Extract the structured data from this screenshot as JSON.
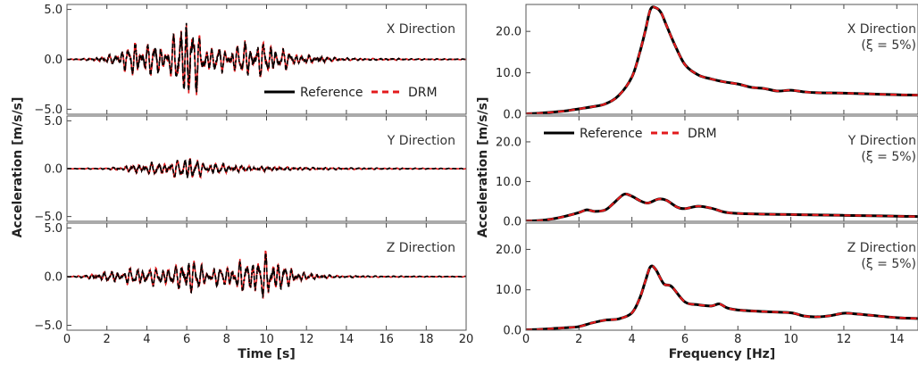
{
  "chart_data": [
    {
      "type": "line",
      "panel": "left",
      "xlabel": "Time [s]",
      "ylabel": "Acceleration [m/s/s]",
      "xlim": [
        0,
        20
      ],
      "xticks": [
        "0",
        "2",
        "4",
        "6",
        "8",
        "10",
        "12",
        "14",
        "16",
        "18",
        "20"
      ],
      "legend": {
        "entries": [
          "Reference",
          "DRM"
        ],
        "placement": "inside top subplot, bottom-right"
      },
      "series_style": [
        {
          "name": "Reference",
          "color": "#000000",
          "dash": "solid"
        },
        {
          "name": "DRM",
          "color": "#e31a1c",
          "dash": "dashed"
        }
      ],
      "subplots": [
        {
          "label": "X Direction",
          "ylim": [
            -5.5,
            5.5
          ],
          "yticks": [
            "5.0",
            "0.0",
            "−5.0"
          ],
          "envelope": [
            [
              0,
              0.02
            ],
            [
              1,
              0.08
            ],
            [
              2,
              0.25
            ],
            [
              3,
              1.2
            ],
            [
              3.5,
              1.6
            ],
            [
              4,
              1.5
            ],
            [
              4.5,
              1.6
            ],
            [
              5,
              1.0
            ],
            [
              5.5,
              2.6
            ],
            [
              6,
              5.0
            ],
            [
              6.3,
              3.8
            ],
            [
              6.6,
              2.2
            ],
            [
              7,
              1.3
            ],
            [
              7.5,
              1.2
            ],
            [
              8,
              1.0
            ],
            [
              8.5,
              1.2
            ],
            [
              9,
              1.8
            ],
            [
              9.5,
              1.6
            ],
            [
              10,
              1.5
            ],
            [
              10.5,
              1.2
            ],
            [
              11,
              0.9
            ],
            [
              11.5,
              0.5
            ],
            [
              12,
              0.3
            ],
            [
              12.5,
              0.35
            ],
            [
              13,
              0.2
            ],
            [
              14,
              0.12
            ],
            [
              15,
              0.08
            ],
            [
              16,
              0.08
            ],
            [
              17,
              0.06
            ],
            [
              18,
              0.05
            ],
            [
              20,
              0.03
            ]
          ]
        },
        {
          "label": "Y Direction",
          "ylim": [
            -5.5,
            5.5
          ],
          "yticks": [
            "5.0",
            "0.0",
            "−5.0"
          ],
          "envelope": [
            [
              0,
              0.02
            ],
            [
              2,
              0.06
            ],
            [
              3,
              0.25
            ],
            [
              4,
              0.55
            ],
            [
              5,
              0.6
            ],
            [
              5.5,
              0.8
            ],
            [
              6,
              1.4
            ],
            [
              6.5,
              0.9
            ],
            [
              7,
              0.5
            ],
            [
              7.5,
              0.55
            ],
            [
              8,
              0.35
            ],
            [
              9,
              0.25
            ],
            [
              10,
              0.2
            ],
            [
              11,
              0.15
            ],
            [
              12,
              0.12
            ],
            [
              14,
              0.08
            ],
            [
              16,
              0.06
            ],
            [
              18,
              0.04
            ],
            [
              20,
              0.03
            ]
          ]
        },
        {
          "label": "Z Direction",
          "ylim": [
            -5.5,
            5.5
          ],
          "yticks": [
            "5.0",
            "0.0",
            "−5.0"
          ],
          "envelope": [
            [
              0,
              0.02
            ],
            [
              1,
              0.15
            ],
            [
              2,
              0.45
            ],
            [
              3,
              0.7
            ],
            [
              4,
              0.9
            ],
            [
              5,
              0.85
            ],
            [
              5.5,
              1.0
            ],
            [
              6,
              2.2
            ],
            [
              6.5,
              1.3
            ],
            [
              7,
              0.7
            ],
            [
              7.5,
              0.9
            ],
            [
              8,
              1.0
            ],
            [
              8.5,
              1.3
            ],
            [
              9,
              1.6
            ],
            [
              9.5,
              1.9
            ],
            [
              10,
              2.1
            ],
            [
              10.5,
              1.6
            ],
            [
              11,
              1.0
            ],
            [
              11.5,
              0.6
            ],
            [
              12,
              0.3
            ],
            [
              13,
              0.15
            ],
            [
              14,
              0.08
            ],
            [
              16,
              0.06
            ],
            [
              18,
              0.04
            ],
            [
              20,
              0.03
            ]
          ]
        }
      ]
    },
    {
      "type": "line",
      "panel": "right",
      "xlabel": "Frequency [Hz]",
      "ylabel": "Acceleration [m/s/s]",
      "xlim": [
        0,
        14.8
      ],
      "xticks": [
        "0",
        "2",
        "4",
        "6",
        "8",
        "10",
        "12",
        "14"
      ],
      "legend": {
        "entries": [
          "Reference",
          "DRM"
        ],
        "placement": "inside middle subplot, top-left"
      },
      "series_style": [
        {
          "name": "Reference",
          "color": "#000000",
          "dash": "solid"
        },
        {
          "name": "DRM",
          "color": "#e31a1c",
          "dash": "dashed"
        }
      ],
      "subplots": [
        {
          "label": "X Direction",
          "label2": "(ξ = 5%)",
          "ylim": [
            0,
            26.5
          ],
          "yticks": [
            "0.0",
            "10.0",
            "20.0"
          ],
          "points": [
            [
              0,
              0.1
            ],
            [
              0.5,
              0.25
            ],
            [
              1,
              0.5
            ],
            [
              1.5,
              0.8
            ],
            [
              2,
              1.3
            ],
            [
              2.5,
              1.8
            ],
            [
              3,
              2.5
            ],
            [
              3.5,
              4.5
            ],
            [
              4,
              9
            ],
            [
              4.3,
              15
            ],
            [
              4.5,
              20
            ],
            [
              4.7,
              25.3
            ],
            [
              4.9,
              25.7
            ],
            [
              5.1,
              24.5
            ],
            [
              5.3,
              21.5
            ],
            [
              5.6,
              17
            ],
            [
              6,
              12
            ],
            [
              6.5,
              9.5
            ],
            [
              7,
              8.5
            ],
            [
              7.5,
              7.8
            ],
            [
              8,
              7.3
            ],
            [
              8.5,
              6.5
            ],
            [
              9,
              6.2
            ],
            [
              9.5,
              5.6
            ],
            [
              10,
              5.8
            ],
            [
              10.5,
              5.4
            ],
            [
              11,
              5.2
            ],
            [
              12,
              5.1
            ],
            [
              13,
              4.9
            ],
            [
              14,
              4.7
            ],
            [
              14.8,
              4.6
            ]
          ]
        },
        {
          "label": "Y Direction",
          "label2": "(ξ = 5%)",
          "ylim": [
            0,
            26.5
          ],
          "yticks": [
            "0.0",
            "10.0",
            "20.0"
          ],
          "points": [
            [
              0,
              0.1
            ],
            [
              0.5,
              0.2
            ],
            [
              1,
              0.6
            ],
            [
              1.5,
              1.3
            ],
            [
              2,
              2.2
            ],
            [
              2.3,
              2.9
            ],
            [
              2.6,
              2.5
            ],
            [
              3,
              2.9
            ],
            [
              3.3,
              4.5
            ],
            [
              3.7,
              6.8
            ],
            [
              4,
              6.3
            ],
            [
              4.3,
              5.2
            ],
            [
              4.6,
              4.6
            ],
            [
              5,
              5.6
            ],
            [
              5.3,
              5.3
            ],
            [
              5.7,
              3.6
            ],
            [
              6,
              3.2
            ],
            [
              6.5,
              3.8
            ],
            [
              7,
              3.3
            ],
            [
              7.5,
              2.3
            ],
            [
              8,
              2.0
            ],
            [
              9,
              1.8
            ],
            [
              10,
              1.7
            ],
            [
              11,
              1.6
            ],
            [
              12,
              1.5
            ],
            [
              13,
              1.4
            ],
            [
              14,
              1.3
            ],
            [
              14.8,
              1.2
            ]
          ]
        },
        {
          "label": "Z Direction",
          "label2": "(ξ = 5%)",
          "ylim": [
            0,
            26.5
          ],
          "yticks": [
            "0.0",
            "10.0",
            "20.0"
          ],
          "points": [
            [
              0,
              0.1
            ],
            [
              0.5,
              0.2
            ],
            [
              1,
              0.4
            ],
            [
              1.5,
              0.6
            ],
            [
              2,
              0.9
            ],
            [
              2.5,
              1.8
            ],
            [
              3,
              2.5
            ],
            [
              3.5,
              2.8
            ],
            [
              4,
              4.3
            ],
            [
              4.3,
              8
            ],
            [
              4.5,
              12
            ],
            [
              4.7,
              15.7
            ],
            [
              4.9,
              15
            ],
            [
              5.2,
              11.5
            ],
            [
              5.5,
              10.8
            ],
            [
              6,
              7
            ],
            [
              6.5,
              6.3
            ],
            [
              7,
              6.0
            ],
            [
              7.3,
              6.5
            ],
            [
              7.6,
              5.5
            ],
            [
              8,
              5.0
            ],
            [
              9,
              4.6
            ],
            [
              10,
              4.3
            ],
            [
              10.5,
              3.5
            ],
            [
              11,
              3.3
            ],
            [
              11.5,
              3.6
            ],
            [
              12,
              4.2
            ],
            [
              12.5,
              4.0
            ],
            [
              13,
              3.7
            ],
            [
              14,
              3.1
            ],
            [
              14.8,
              2.9
            ]
          ]
        }
      ]
    }
  ]
}
